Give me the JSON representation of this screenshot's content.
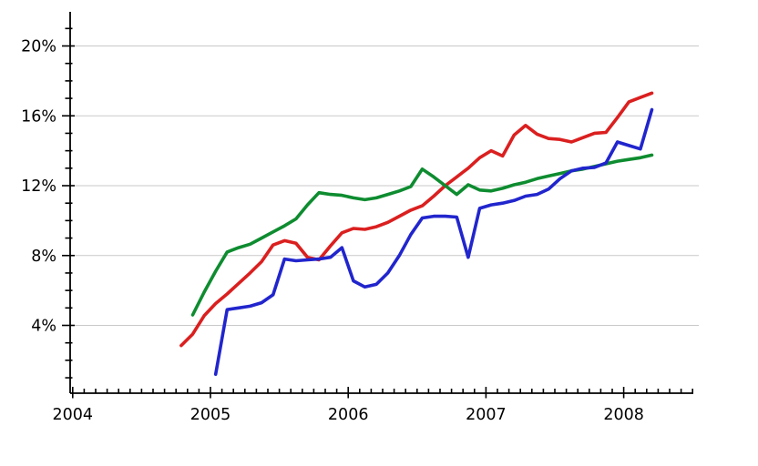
{
  "chart_data": {
    "type": "line",
    "title": "",
    "xlabel": "",
    "ylabel": "",
    "grid": {
      "horizontal": true,
      "vertical": false,
      "color": "#c9c9c9"
    },
    "legend": null,
    "background_color": "#ffffff",
    "axis_color": "#000000",
    "x_axis": {
      "tick_labels": [
        "2004",
        "2005",
        "2006",
        "2007",
        "2008"
      ],
      "tick_years": [
        2004,
        2005,
        2006,
        2007,
        2008
      ],
      "minor_tick_unit": "month",
      "range_months_from_jan2005": [
        -12,
        42
      ]
    },
    "y_axis": {
      "tick_labels": [
        "4%",
        "8%",
        "12%",
        "16%",
        "20%"
      ],
      "tick_values": [
        4,
        8,
        12,
        16,
        20
      ],
      "minor_tick_step": 1,
      "minor_tick_range": [
        1,
        21
      ],
      "range": [
        0,
        21.9
      ]
    },
    "series": [
      {
        "name": "red-series",
        "color": "#db1f1f",
        "months": [
          "2004-10",
          "2004-11",
          "2004-12",
          "2005-01",
          "2005-02",
          "2005-03",
          "2005-04",
          "2005-05",
          "2005-06",
          "2005-07",
          "2005-08",
          "2005-09",
          "2005-10",
          "2005-11",
          "2005-12",
          "2006-01",
          "2006-02",
          "2006-03",
          "2006-04",
          "2006-05",
          "2006-06",
          "2006-07",
          "2006-08",
          "2006-09",
          "2006-10",
          "2006-11",
          "2006-12",
          "2007-01",
          "2007-02",
          "2007-03",
          "2007-04",
          "2007-05",
          "2007-06",
          "2007-07",
          "2007-08",
          "2007-09",
          "2007-10",
          "2007-11",
          "2007-12",
          "2008-01",
          "2008-02",
          "2008-03"
        ],
        "values": [
          2.85,
          3.5,
          4.55,
          5.25,
          5.8,
          6.4,
          7.0,
          7.65,
          8.6,
          8.85,
          8.7,
          7.9,
          7.75,
          8.55,
          9.3,
          9.55,
          9.5,
          9.65,
          9.9,
          10.25,
          10.6,
          10.85,
          11.4,
          12.0,
          12.5,
          13.0,
          13.6,
          14.0,
          13.7,
          14.9,
          15.45,
          14.95,
          14.7,
          14.65,
          14.5,
          14.75,
          15.0,
          15.05,
          15.9,
          16.8,
          17.05,
          17.3
        ]
      },
      {
        "name": "green-series",
        "color": "#0e8c30",
        "months": [
          "2004-11",
          "2004-12",
          "2005-01",
          "2005-02",
          "2005-03",
          "2005-04",
          "2005-05",
          "2005-06",
          "2005-07",
          "2005-08",
          "2005-09",
          "2005-10",
          "2005-11",
          "2005-12",
          "2006-01",
          "2006-02",
          "2006-03",
          "2006-04",
          "2006-05",
          "2006-06",
          "2006-07",
          "2006-08",
          "2006-09",
          "2006-10",
          "2006-11",
          "2006-12",
          "2007-01",
          "2007-02",
          "2007-03",
          "2007-04",
          "2007-05",
          "2007-06",
          "2007-07",
          "2007-08",
          "2007-09",
          "2007-10",
          "2007-11",
          "2007-12",
          "2008-01",
          "2008-02",
          "2008-03"
        ],
        "values": [
          4.6,
          5.9,
          7.1,
          8.2,
          8.45,
          8.65,
          9.0,
          9.35,
          9.7,
          10.1,
          10.9,
          11.6,
          11.5,
          11.45,
          11.3,
          11.2,
          11.3,
          11.5,
          11.7,
          11.95,
          12.95,
          12.5,
          12.0,
          11.5,
          12.05,
          11.75,
          11.7,
          11.85,
          12.05,
          12.2,
          12.4,
          12.55,
          12.7,
          12.85,
          12.95,
          13.1,
          13.25,
          13.4,
          13.5,
          13.6,
          13.75
        ]
      },
      {
        "name": "blue-series",
        "color": "#2125cd",
        "months": [
          "2005-01",
          "2005-02",
          "2005-03",
          "2005-04",
          "2005-05",
          "2005-06",
          "2005-07",
          "2005-08",
          "2005-09",
          "2005-10",
          "2005-11",
          "2005-12",
          "2006-01",
          "2006-02",
          "2006-03",
          "2006-04",
          "2006-05",
          "2006-06",
          "2006-07",
          "2006-08",
          "2006-09",
          "2006-10",
          "2006-11",
          "2006-12",
          "2007-01",
          "2007-02",
          "2007-03",
          "2007-04",
          "2007-05",
          "2007-06",
          "2007-07",
          "2007-08",
          "2007-09",
          "2007-10",
          "2007-11",
          "2007-12",
          "2008-01",
          "2008-02",
          "2008-03"
        ],
        "values": [
          1.2,
          4.9,
          5.0,
          5.1,
          5.3,
          5.75,
          7.8,
          7.7,
          7.75,
          7.8,
          7.9,
          8.45,
          6.55,
          6.2,
          6.35,
          7.0,
          8.0,
          9.2,
          10.15,
          10.25,
          10.25,
          10.2,
          7.9,
          10.7,
          10.9,
          11.0,
          11.15,
          11.4,
          11.5,
          11.8,
          12.4,
          12.85,
          13.0,
          13.05,
          13.3,
          14.5,
          14.3,
          14.1,
          16.35
        ]
      }
    ]
  }
}
